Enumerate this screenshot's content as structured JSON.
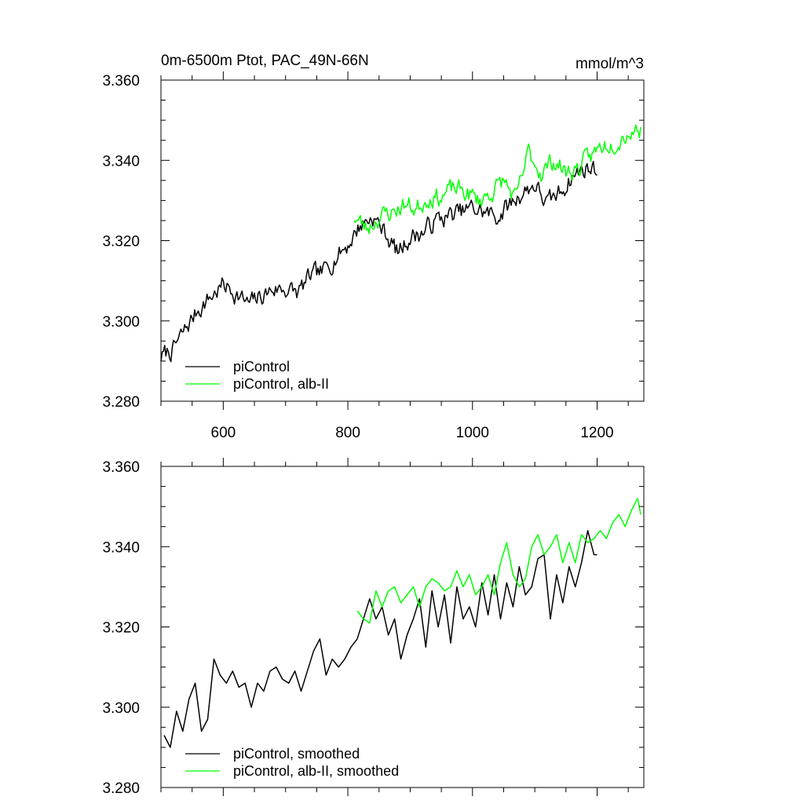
{
  "chart_data": [
    {
      "type": "line",
      "title": "0m-6500m Ptot, PAC_49N-66N",
      "units": "mmol/m^3",
      "xlim": [
        500,
        1275
      ],
      "ylim": [
        3.28,
        3.36
      ],
      "x_ticks": [
        600,
        800,
        1000,
        1200
      ],
      "x_tick_labels": [
        "600",
        "800",
        "1000",
        "1200"
      ],
      "y_ticks": [
        3.28,
        3.3,
        3.32,
        3.34,
        3.36
      ],
      "y_tick_labels": [
        "3.280",
        "3.300",
        "3.320",
        "3.340",
        "3.360"
      ],
      "legend": {
        "position": "bottom-left",
        "entries": [
          "piControl",
          "piControl, alb-II"
        ]
      },
      "series": [
        {
          "name": "piControl",
          "color": "#000000",
          "x": [
            500,
            520,
            540,
            560,
            580,
            600,
            620,
            640,
            660,
            680,
            700,
            720,
            740,
            760,
            780,
            800,
            820,
            840,
            860,
            880,
            900,
            920,
            940,
            960,
            980,
            1000,
            1020,
            1040,
            1060,
            1080,
            1100,
            1120,
            1140,
            1160,
            1180,
            1200
          ],
          "values": [
            3.291,
            3.293,
            3.298,
            3.303,
            3.306,
            3.309,
            3.307,
            3.304,
            3.306,
            3.308,
            3.308,
            3.307,
            3.311,
            3.312,
            3.316,
            3.319,
            3.324,
            3.326,
            3.322,
            3.317,
            3.321,
            3.322,
            3.325,
            3.326,
            3.327,
            3.328,
            3.327,
            3.326,
            3.329,
            3.332,
            3.334,
            3.329,
            3.332,
            3.336,
            3.338,
            3.338
          ],
          "noise": 0.0045,
          "step": 2,
          "seed": 7
        },
        {
          "name": "piControl, alb-II",
          "color": "#00ff00",
          "x": [
            810,
            830,
            850,
            870,
            890,
            910,
            930,
            950,
            970,
            990,
            1010,
            1030,
            1050,
            1070,
            1090,
            1110,
            1130,
            1150,
            1170,
            1190,
            1210,
            1230,
            1250,
            1270
          ],
          "values": [
            3.326,
            3.323,
            3.326,
            3.327,
            3.329,
            3.328,
            3.331,
            3.331,
            3.333,
            3.332,
            3.33,
            3.332,
            3.335,
            3.33,
            3.342,
            3.337,
            3.34,
            3.337,
            3.338,
            3.341,
            3.344,
            3.345,
            3.347,
            3.348
          ],
          "noise": 0.0045,
          "step": 2,
          "seed": 23
        }
      ]
    },
    {
      "type": "line",
      "xlim": [
        500,
        1275
      ],
      "ylim": [
        3.28,
        3.36
      ],
      "x_ticks": [
        600,
        800,
        1000,
        1200
      ],
      "y_ticks": [
        3.28,
        3.3,
        3.32,
        3.34,
        3.36
      ],
      "y_tick_labels": [
        "3.280",
        "3.300",
        "3.320",
        "3.340",
        "3.360"
      ],
      "legend": {
        "position": "bottom-left",
        "entries": [
          "piControl, smoothed",
          "piControl, alb-II, smoothed"
        ]
      },
      "series": [
        {
          "name": "piControl, smoothed",
          "color": "#000000",
          "x": [
            505,
            515,
            525,
            535,
            545,
            555,
            565,
            575,
            585,
            595,
            605,
            615,
            625,
            635,
            645,
            655,
            665,
            675,
            685,
            695,
            705,
            715,
            725,
            735,
            745,
            755,
            765,
            775,
            785,
            795,
            805,
            815,
            825,
            835,
            845,
            855,
            865,
            875,
            885,
            895,
            905,
            915,
            925,
            935,
            945,
            955,
            965,
            975,
            985,
            995,
            1005,
            1015,
            1025,
            1035,
            1045,
            1055,
            1065,
            1075,
            1085,
            1095,
            1105,
            1115,
            1125,
            1135,
            1145,
            1155,
            1165,
            1175,
            1185,
            1195,
            1200
          ],
          "values": [
            3.293,
            3.29,
            3.299,
            3.294,
            3.302,
            3.306,
            3.294,
            3.297,
            3.312,
            3.308,
            3.306,
            3.309,
            3.305,
            3.306,
            3.3,
            3.306,
            3.304,
            3.309,
            3.31,
            3.307,
            3.306,
            3.309,
            3.304,
            3.309,
            3.314,
            3.317,
            3.308,
            3.312,
            3.31,
            3.312,
            3.315,
            3.317,
            3.322,
            3.327,
            3.322,
            3.325,
            3.318,
            3.322,
            3.312,
            3.318,
            3.322,
            3.327,
            3.315,
            3.329,
            3.32,
            3.328,
            3.316,
            3.33,
            3.322,
            3.325,
            3.32,
            3.331,
            3.323,
            3.333,
            3.322,
            3.331,
            3.325,
            3.335,
            3.328,
            3.33,
            3.337,
            3.338,
            3.322,
            3.333,
            3.326,
            3.335,
            3.33,
            3.336,
            3.344,
            3.338,
            3.338
          ]
        },
        {
          "name": "piControl, alb-II, smoothed",
          "color": "#00ff00",
          "x": [
            815,
            825,
            835,
            845,
            855,
            865,
            875,
            885,
            895,
            905,
            915,
            925,
            935,
            945,
            955,
            965,
            975,
            985,
            995,
            1005,
            1015,
            1025,
            1035,
            1045,
            1055,
            1065,
            1075,
            1085,
            1095,
            1105,
            1115,
            1125,
            1135,
            1145,
            1155,
            1165,
            1175,
            1185,
            1195,
            1205,
            1215,
            1225,
            1235,
            1245,
            1255,
            1265,
            1270
          ],
          "values": [
            3.324,
            3.322,
            3.321,
            3.329,
            3.325,
            3.329,
            3.33,
            3.326,
            3.328,
            3.33,
            3.325,
            3.33,
            3.332,
            3.331,
            3.329,
            3.33,
            3.334,
            3.33,
            3.333,
            3.328,
            3.33,
            3.333,
            3.328,
            3.336,
            3.341,
            3.333,
            3.33,
            3.332,
            3.34,
            3.343,
            3.338,
            3.34,
            3.343,
            3.336,
            3.341,
            3.336,
            3.343,
            3.341,
            3.342,
            3.344,
            3.342,
            3.346,
            3.348,
            3.345,
            3.349,
            3.352,
            3.348
          ]
        }
      ]
    }
  ]
}
